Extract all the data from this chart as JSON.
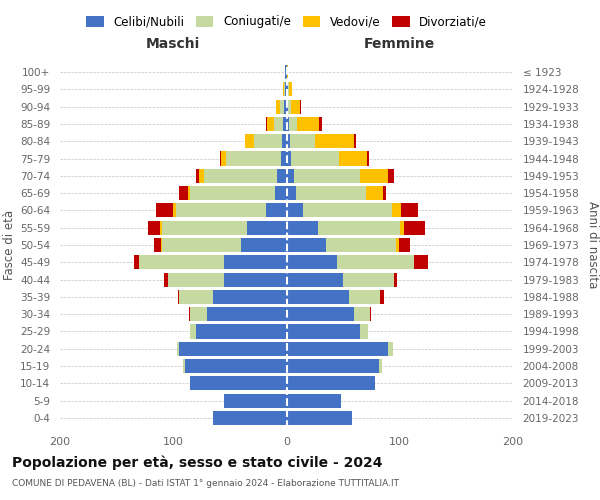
{
  "age_groups": [
    "0-4",
    "5-9",
    "10-14",
    "15-19",
    "20-24",
    "25-29",
    "30-34",
    "35-39",
    "40-44",
    "45-49",
    "50-54",
    "55-59",
    "60-64",
    "65-69",
    "70-74",
    "75-79",
    "80-84",
    "85-89",
    "90-94",
    "95-99",
    "100+"
  ],
  "birth_years": [
    "2019-2023",
    "2014-2018",
    "2009-2013",
    "2004-2008",
    "1999-2003",
    "1994-1998",
    "1989-1993",
    "1984-1988",
    "1979-1983",
    "1974-1978",
    "1969-1973",
    "1964-1968",
    "1959-1963",
    "1954-1958",
    "1949-1953",
    "1944-1948",
    "1939-1943",
    "1934-1938",
    "1929-1933",
    "1924-1928",
    "≤ 1923"
  ],
  "male_celibi": [
    65,
    55,
    85,
    90,
    95,
    80,
    70,
    65,
    55,
    55,
    40,
    35,
    18,
    10,
    8,
    5,
    4,
    3,
    2,
    1,
    1
  ],
  "male_coniugati": [
    0,
    0,
    0,
    1,
    2,
    5,
    15,
    30,
    50,
    75,
    70,
    75,
    80,
    75,
    65,
    48,
    25,
    8,
    4,
    1,
    0
  ],
  "male_vedovi": [
    0,
    0,
    0,
    0,
    0,
    0,
    0,
    0,
    0,
    0,
    1,
    2,
    2,
    2,
    4,
    5,
    8,
    6,
    3,
    1,
    0
  ],
  "male_divorziati": [
    0,
    0,
    0,
    0,
    0,
    0,
    1,
    1,
    3,
    5,
    6,
    10,
    15,
    8,
    3,
    1,
    0,
    1,
    0,
    0,
    0
  ],
  "female_celibi": [
    58,
    48,
    78,
    82,
    90,
    65,
    60,
    55,
    50,
    45,
    35,
    28,
    15,
    8,
    7,
    4,
    3,
    2,
    1,
    1,
    0
  ],
  "female_coniugati": [
    0,
    0,
    0,
    2,
    4,
    7,
    14,
    28,
    45,
    68,
    62,
    72,
    78,
    62,
    58,
    42,
    22,
    7,
    3,
    1,
    0
  ],
  "female_vedovi": [
    0,
    0,
    0,
    0,
    0,
    0,
    0,
    0,
    0,
    0,
    2,
    4,
    8,
    15,
    25,
    25,
    35,
    20,
    8,
    3,
    1
  ],
  "female_divorziati": [
    0,
    0,
    0,
    0,
    0,
    0,
    1,
    3,
    3,
    12,
    10,
    18,
    15,
    3,
    5,
    2,
    1,
    2,
    1,
    0,
    0
  ],
  "colors": {
    "celibi": "#4472c4",
    "coniugati": "#c5d9a0",
    "vedovi": "#ffc000",
    "divorziati": "#c00000"
  },
  "title": "Popolazione per età, sesso e stato civile - 2024",
  "subtitle": "COMUNE DI PEDAVENA (BL) - Dati ISTAT 1° gennaio 2024 - Elaborazione TUTTITALIA.IT",
  "header_maschi": "Maschi",
  "header_femmine": "Femmine",
  "ylabel_left": "Fasce di età",
  "ylabel_right": "Anni di nascita",
  "xlim": 200,
  "background_color": "#ffffff",
  "grid_color": "#bbbbbb",
  "legend_labels": [
    "Celibi/Nubili",
    "Coniugati/e",
    "Vedovi/e",
    "Divorziati/e"
  ]
}
